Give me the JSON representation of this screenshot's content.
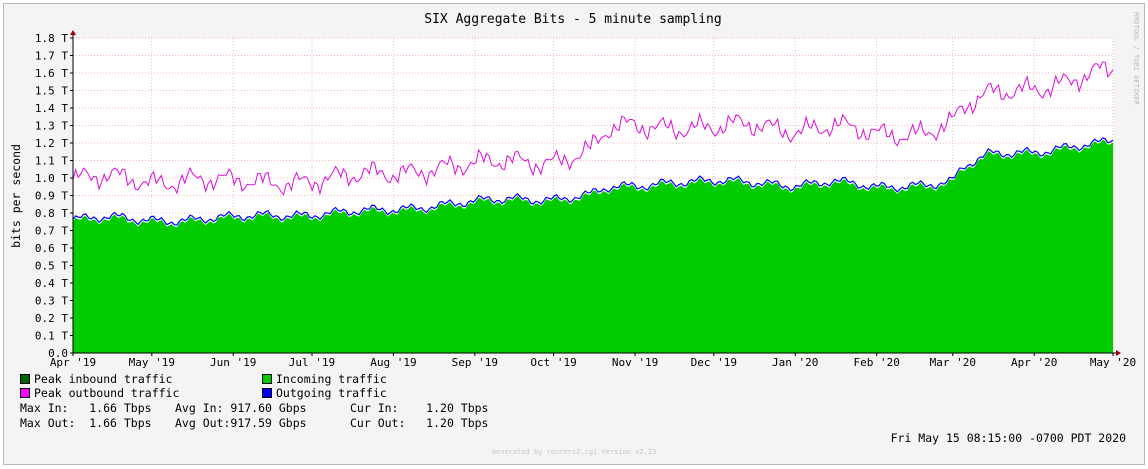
{
  "chart_data": {
    "type": "area",
    "title": "SIX Aggregate Bits - 5 minute sampling",
    "ylabel": "bits per second",
    "xlabel": "",
    "ylim": [
      0,
      1.8
    ],
    "yunit": "T",
    "yticks": [
      "0.0",
      "0.1 T",
      "0.2 T",
      "0.3 T",
      "0.4 T",
      "0.5 T",
      "0.6 T",
      "0.7 T",
      "0.8 T",
      "0.9 T",
      "1.0 T",
      "1.1 T",
      "1.2 T",
      "1.3 T",
      "1.4 T",
      "1.5 T",
      "1.6 T",
      "1.7 T",
      "1.8 T"
    ],
    "xticks": [
      "Apr '19",
      "May '19",
      "Jun '19",
      "Jul '19",
      "Aug '19",
      "Sep '19",
      "Oct '19",
      "Nov '19",
      "Dec '19",
      "Jan '20",
      "Feb '20",
      "Mar '20",
      "Apr '20",
      "May '20"
    ],
    "x_range": [
      "2019-04-01",
      "2020-05-01"
    ],
    "grid": true,
    "series": [
      {
        "name": "Peak inbound traffic",
        "color": "#006400",
        "style": "line"
      },
      {
        "name": "Peak outbound traffic",
        "color": "#ff00ff",
        "style": "line",
        "values": [
          [
            "2019-04-01",
            0.99
          ],
          [
            "2019-04-15",
            1.0
          ],
          [
            "2019-05-01",
            0.98
          ],
          [
            "2019-05-15",
            1.0
          ],
          [
            "2019-06-01",
            0.97
          ],
          [
            "2019-06-15",
            0.98
          ],
          [
            "2019-07-01",
            0.99
          ],
          [
            "2019-07-15",
            1.0
          ],
          [
            "2019-08-01",
            1.03
          ],
          [
            "2019-08-15",
            1.06
          ],
          [
            "2019-09-01",
            1.07
          ],
          [
            "2019-09-15",
            1.1
          ],
          [
            "2019-10-01",
            1.1
          ],
          [
            "2019-10-15",
            1.15
          ],
          [
            "2019-10-22",
            1.27
          ],
          [
            "2019-11-01",
            1.3
          ],
          [
            "2019-11-15",
            1.3
          ],
          [
            "2019-12-01",
            1.28
          ],
          [
            "2019-12-15",
            1.3
          ],
          [
            "2020-01-01",
            1.28
          ],
          [
            "2020-01-15",
            1.3
          ],
          [
            "2020-02-01",
            1.24
          ],
          [
            "2020-02-15",
            1.26
          ],
          [
            "2020-03-01",
            1.32
          ],
          [
            "2020-03-05",
            1.4
          ],
          [
            "2020-03-15",
            1.47
          ],
          [
            "2020-04-01",
            1.52
          ],
          [
            "2020-04-15",
            1.56
          ],
          [
            "2020-04-25",
            1.6
          ],
          [
            "2020-05-01",
            1.6
          ]
        ]
      },
      {
        "name": "Incoming traffic",
        "color": "#00cc00",
        "style": "area",
        "values": [
          [
            "2019-04-01",
            0.75
          ],
          [
            "2019-04-15",
            0.76
          ],
          [
            "2019-05-01",
            0.75
          ],
          [
            "2019-05-15",
            0.75
          ],
          [
            "2019-06-01",
            0.76
          ],
          [
            "2019-06-15",
            0.78
          ],
          [
            "2019-07-01",
            0.78
          ],
          [
            "2019-07-15",
            0.79
          ],
          [
            "2019-08-01",
            0.81
          ],
          [
            "2019-08-15",
            0.83
          ],
          [
            "2019-09-01",
            0.85
          ],
          [
            "2019-09-15",
            0.87
          ],
          [
            "2019-10-01",
            0.87
          ],
          [
            "2019-10-15",
            0.89
          ],
          [
            "2019-10-22",
            0.93
          ],
          [
            "2019-11-01",
            0.94
          ],
          [
            "2019-11-15",
            0.97
          ],
          [
            "2019-12-01",
            0.97
          ],
          [
            "2019-12-15",
            0.96
          ],
          [
            "2020-01-01",
            0.95
          ],
          [
            "2020-01-15",
            0.97
          ],
          [
            "2020-02-01",
            0.93
          ],
          [
            "2020-02-15",
            0.95
          ],
          [
            "2020-03-01",
            0.97
          ],
          [
            "2020-03-05",
            1.05
          ],
          [
            "2020-03-15",
            1.12
          ],
          [
            "2020-04-01",
            1.14
          ],
          [
            "2020-04-15",
            1.17
          ],
          [
            "2020-04-25",
            1.18
          ],
          [
            "2020-05-01",
            1.2
          ]
        ]
      },
      {
        "name": "Outgoing traffic",
        "color": "#0000ff",
        "style": "line"
      }
    ]
  },
  "legend": {
    "items": [
      {
        "label": "Peak inbound traffic",
        "color": "#006400"
      },
      {
        "label": "Incoming traffic",
        "color": "#00cc00"
      },
      {
        "label": "Peak outbound traffic",
        "color": "#ff00ff"
      },
      {
        "label": "Outgoing traffic",
        "color": "#0000ff"
      }
    ]
  },
  "stats": {
    "max_in_label": "Max In:",
    "max_in": "1.66 Tbps",
    "avg_in_label": "Avg In:",
    "avg_in": "917.60 Gbps",
    "cur_in_label": "Cur In:",
    "cur_in": "1.20 Tbps",
    "max_out_label": "Max Out:",
    "max_out": "1.66 Tbps",
    "avg_out_label": "Avg Out:",
    "avg_out": "917.59 Gbps",
    "cur_out_label": "Cur Out:",
    "cur_out": "1.20 Tbps"
  },
  "timestamp": "Fri May 15 08:15:00 -0700 PDT 2020",
  "generator": "Generated by routers2.cgi Version v2.23",
  "watermark": "RRDTOOL / TOBI OETIKER"
}
